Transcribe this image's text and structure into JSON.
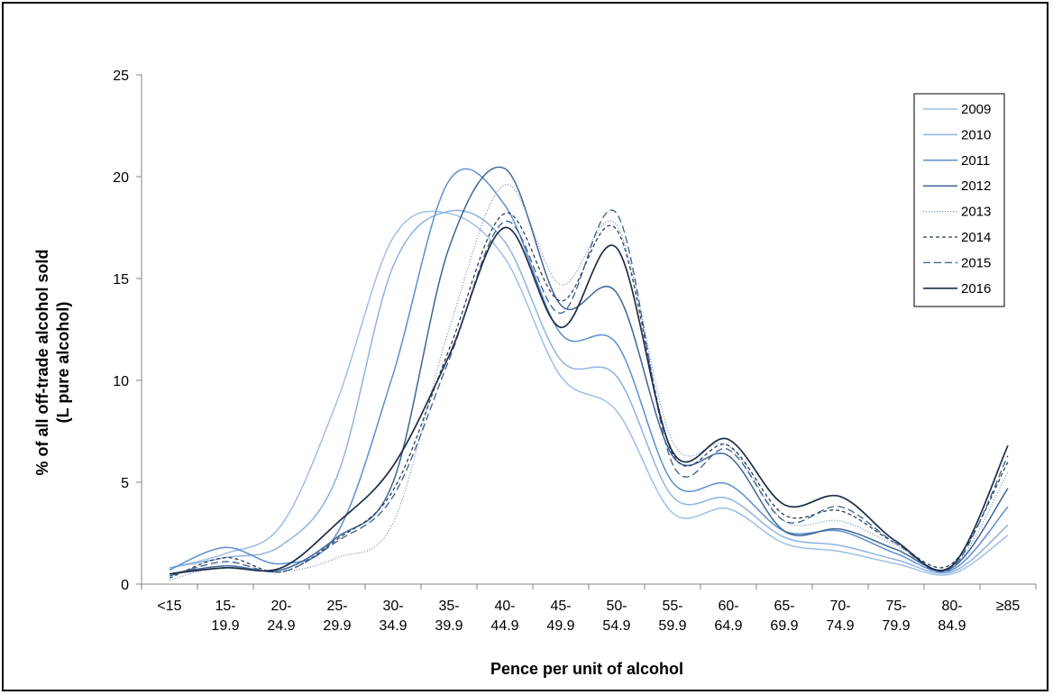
{
  "chart_data": {
    "type": "line",
    "title": "",
    "xlabel": "Pence per unit of alcohol",
    "ylabel_lines": [
      "% of all off-trade alcohol sold",
      "(L pure alcohol)"
    ],
    "categories": [
      [
        "<15"
      ],
      [
        "15-",
        "19.9"
      ],
      [
        "20-",
        "24.9"
      ],
      [
        "25-",
        "29.9"
      ],
      [
        "30-",
        "34.9"
      ],
      [
        "35-",
        "39.9"
      ],
      [
        "40-",
        "44.9"
      ],
      [
        "45-",
        "49.9"
      ],
      [
        "50-",
        "54.9"
      ],
      [
        "55-",
        "59.9"
      ],
      [
        "60-",
        "64.9"
      ],
      [
        "65-",
        "69.9"
      ],
      [
        "70-",
        "74.9"
      ],
      [
        "75-",
        "79.9"
      ],
      [
        "80-",
        "84.9"
      ],
      [
        "≥85"
      ]
    ],
    "ylim": [
      0,
      25
    ],
    "yticks": [
      0,
      5,
      10,
      15,
      20,
      25
    ],
    "grid": false,
    "legend_position": "top-right",
    "series": [
      {
        "name": "2009",
        "color": "#9ebfe6",
        "dash": "",
        "width": 1.5,
        "values": [
          0.8,
          1.5,
          2.9,
          9.0,
          17.0,
          18.2,
          16.0,
          10.2,
          8.5,
          3.5,
          3.7,
          2.0,
          1.6,
          1.0,
          0.5,
          2.4
        ]
      },
      {
        "name": "2010",
        "color": "#8fb3dd",
        "dash": "",
        "width": 1.5,
        "values": [
          0.8,
          1.3,
          1.9,
          5.3,
          15.6,
          18.3,
          16.8,
          11.0,
          10.2,
          4.3,
          4.2,
          2.3,
          1.9,
          1.2,
          0.6,
          2.9
        ]
      },
      {
        "name": "2011",
        "color": "#5b8fd0",
        "dash": "",
        "width": 1.5,
        "values": [
          0.7,
          1.8,
          1.0,
          2.5,
          10.3,
          19.8,
          18.6,
          12.3,
          11.8,
          5.0,
          4.9,
          2.6,
          2.6,
          1.5,
          0.7,
          3.8
        ]
      },
      {
        "name": "2012",
        "color": "#3e6596",
        "dash": "",
        "width": 1.5,
        "values": [
          0.5,
          0.9,
          0.7,
          2.3,
          5.0,
          16.5,
          20.4,
          13.7,
          14.3,
          6.3,
          6.3,
          2.6,
          2.7,
          1.7,
          0.8,
          4.7
        ]
      },
      {
        "name": "2013",
        "color": "#6b86b5",
        "dash": "1,2",
        "width": 1.2,
        "values": [
          0.2,
          0.9,
          0.6,
          1.3,
          3.0,
          12.5,
          19.6,
          14.7,
          17.6,
          7.0,
          6.8,
          3.1,
          3.1,
          1.9,
          0.8,
          5.5
        ]
      },
      {
        "name": "2014",
        "color": "#2c3e60",
        "dash": "4,3",
        "width": 1.3,
        "values": [
          0.3,
          1.3,
          0.6,
          2.2,
          4.6,
          11.5,
          18.2,
          13.9,
          17.4,
          6.4,
          6.8,
          3.4,
          3.6,
          2.0,
          1.0,
          6.0
        ]
      },
      {
        "name": "2015",
        "color": "#3a5f8e",
        "dash": "8,4",
        "width": 1.3,
        "values": [
          0.4,
          1.1,
          0.6,
          2.1,
          4.3,
          11.0,
          17.8,
          13.3,
          18.2,
          5.9,
          6.6,
          3.1,
          3.8,
          2.0,
          0.8,
          6.3
        ]
      },
      {
        "name": "2016",
        "color": "#1f2d47",
        "dash": "",
        "width": 1.7,
        "values": [
          0.5,
          0.8,
          0.8,
          3.0,
          5.8,
          11.2,
          17.5,
          12.6,
          16.5,
          6.5,
          7.1,
          3.9,
          4.3,
          2.1,
          0.9,
          6.8
        ]
      }
    ]
  }
}
